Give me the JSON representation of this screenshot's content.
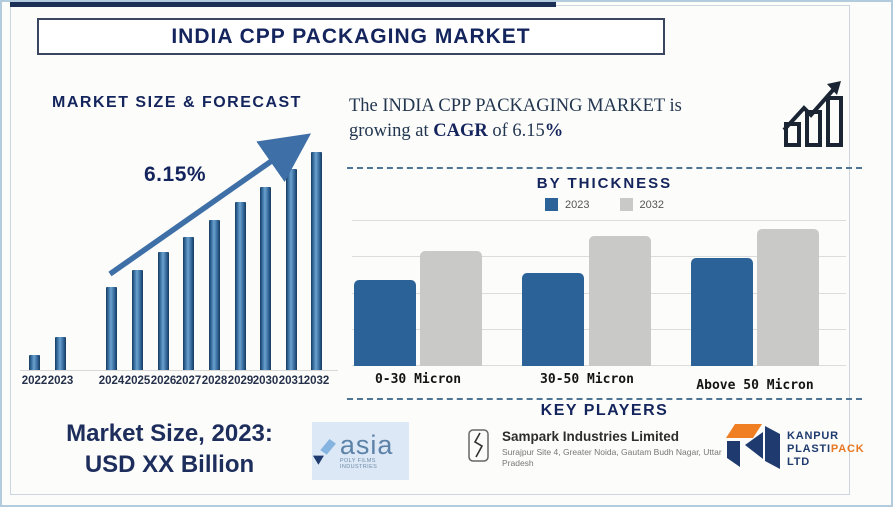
{
  "page": {
    "title": "INDIA CPP PACKAGING MARKET"
  },
  "left_panel": {
    "heading": "MARKET SIZE & FORECAST",
    "cagr_label": "6.15%",
    "market_size_line1": "Market Size, 2023:",
    "market_size_line2": "USD XX Billion"
  },
  "right_panel": {
    "line1": "The INDIA CPP PACKAGING MARKET is",
    "line2_pre": "growing at ",
    "line2_bold": "CAGR",
    "line2_mid": " of 6.15",
    "line2_pct": "%"
  },
  "by_thickness": {
    "heading": "BY THICKNESS"
  },
  "key_players": {
    "heading": "KEY PLAYERS",
    "asia": {
      "name": "asia",
      "subtitle": "POLY FILMS INDUSTRIES"
    },
    "sampark": {
      "name": "Sampark Industries Limited",
      "address": "Surajpur Site 4, Greater Noida, Gautam Budh Nagar, Uttar Pradesh"
    },
    "kanpur": {
      "line1": "KANPUR",
      "line2_navy": "PLASTI",
      "line2_orange": "PACK",
      "line3": "LTD"
    }
  },
  "colors": {
    "navy": "#14245c",
    "forecast_bar_blue": "#2e6da4",
    "thickness_blue": "#2b6399",
    "thickness_gray": "#c9cac8",
    "dashed_line": "#4e7596",
    "asia_bg": "#dce8f5",
    "kanpur_orange": "#f07f24"
  },
  "chart_data": [
    {
      "type": "bar",
      "title": "MARKET SIZE & FORECAST",
      "categories": [
        "2022",
        "2023",
        "2024",
        "2025",
        "2026",
        "2027",
        "2028",
        "2029",
        "2030",
        "2031",
        "2032"
      ],
      "values_pct_of_tallest": [
        7,
        15,
        38,
        46,
        54,
        61,
        69,
        77,
        84,
        92,
        100
      ],
      "annotation": "6.15%",
      "bar_color": "#2e6da4",
      "ylabel": "",
      "xlabel": "",
      "axis_values_shown": false,
      "trend_arrow": "up",
      "grid": "off"
    },
    {
      "type": "bar",
      "title": "BY THICKNESS",
      "categories": [
        "0-30 Micron",
        "30-50 Micron",
        "Above 50 Micron"
      ],
      "series": [
        {
          "name": "2023",
          "color": "#2b6399",
          "values_pct_of_plot_height": [
            59,
            64,
            74
          ]
        },
        {
          "name": "2032",
          "color": "#c9cac8",
          "values_pct_of_plot_height": [
            79,
            89,
            94
          ]
        }
      ],
      "ylabel": "",
      "xlabel": "",
      "axis_values_shown": false,
      "grid": "horizontal",
      "gridline_count": 5,
      "legend_position": "top"
    }
  ]
}
